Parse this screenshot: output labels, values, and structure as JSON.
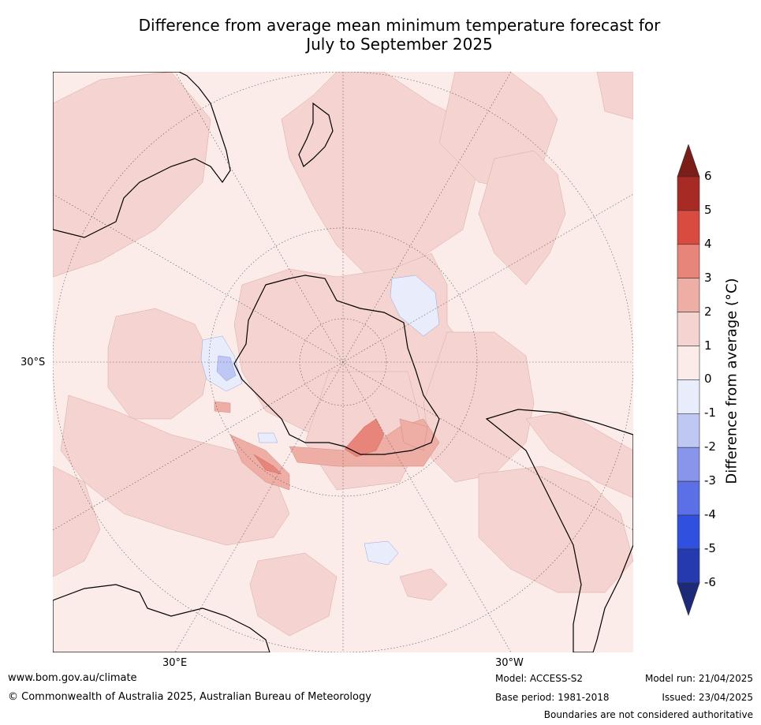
{
  "title_line1": "Difference from average mean minimum temperature forecast for",
  "title_line2": "July to September 2025",
  "axis_labels": {
    "lat_30s": "30°S",
    "lon_30e": "30°E",
    "lon_30w": "30°W"
  },
  "colorbar": {
    "title": "Difference from average (°C)",
    "ticks": [
      "6",
      "5",
      "4",
      "3",
      "2",
      "1",
      "0",
      "-1",
      "-2",
      "-3",
      "-4",
      "-5",
      "-6"
    ],
    "colors": {
      "over": "#7a1e17",
      "5_6": "#a82a24",
      "4_5": "#d94a3f",
      "3_4": "#e8857a",
      "2_3": "#eeaea5",
      "1_2": "#f4d3d0",
      "0_1": "#fbebe9",
      "m1_0": "#e8ecfb",
      "m2_m1": "#bfc8f2",
      "m3_m2": "#8796eb",
      "m4_m3": "#5b6fe6",
      "m5_m4": "#3050e0",
      "m6_m5": "#263ab0",
      "under": "#1d2a7a"
    }
  },
  "footer": {
    "url": "www.bom.gov.au/climate",
    "copyright": "© Commonwealth of Australia 2025, Australian Bureau of Meteorology",
    "model": "Model: ACCESS-S2",
    "base_period": "Base period: 1981-2018",
    "model_run": "Model run: 21/04/2025",
    "issued": "Issued: 23/04/2025",
    "disclaimer": "Boundaries are not considered authoritative"
  }
}
